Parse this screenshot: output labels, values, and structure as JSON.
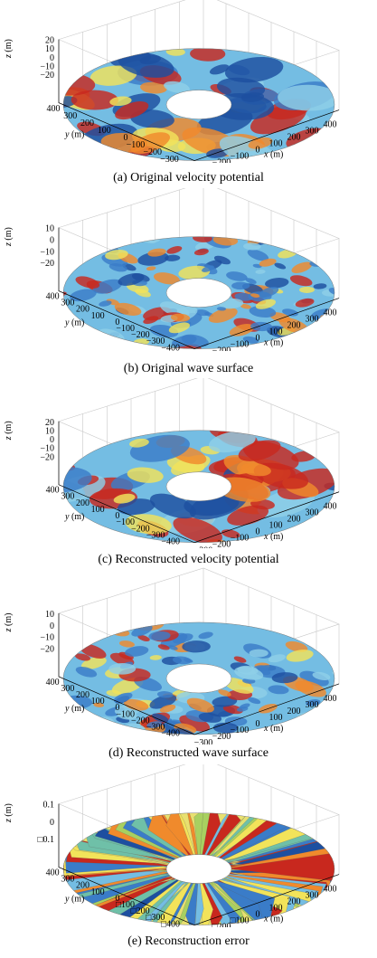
{
  "figure": {
    "panels": [
      {
        "id": "a",
        "caption": "(a) Original velocity potential",
        "surface": "velocity",
        "z_label": "z (m)",
        "z_ticks": [
          "20",
          "10",
          "0",
          "−10",
          "−20"
        ],
        "y_label": "y (m)",
        "y_ticks": [
          "400",
          "300",
          "200",
          "100",
          "0",
          "−100",
          "−200",
          "−300"
        ],
        "x_label": "x (m)",
        "x_ticks": [
          "−300",
          "−200",
          "−100",
          "0",
          "100",
          "200",
          "300",
          "400"
        ]
      },
      {
        "id": "b",
        "caption": "(b) Original wave surface",
        "surface": "wave",
        "z_label": "z (m)",
        "z_ticks": [
          "10",
          "0",
          "−10",
          "−20"
        ],
        "y_label": "y (m)",
        "y_ticks": [
          "400",
          "300",
          "200",
          "100",
          "0",
          "−100",
          "−200",
          "−300",
          "−400"
        ],
        "x_label": "x (m)",
        "x_ticks": [
          "−300",
          "−200",
          "−100",
          "0",
          "100",
          "200",
          "300",
          "400"
        ]
      },
      {
        "id": "c",
        "caption": "(c) Reconstructed velocity potential",
        "surface": "velocity",
        "z_label": "z (m)",
        "z_ticks": [
          "20",
          "10",
          "0",
          "−10",
          "−20"
        ],
        "y_label": "y (m)",
        "y_ticks": [
          "400",
          "300",
          "200",
          "100",
          "0",
          "−100",
          "−200",
          "−300",
          "−400"
        ],
        "x_label": "x (m)",
        "x_ticks": [
          "−300",
          "−200",
          "−100",
          "0",
          "100",
          "200",
          "300",
          "400"
        ]
      },
      {
        "id": "d",
        "caption": "(d) Reconstructed wave surface",
        "surface": "wave",
        "z_label": "z (m)",
        "z_ticks": [
          "10",
          "0",
          "−10",
          "−20"
        ],
        "y_label": "y (m)",
        "y_ticks": [
          "400",
          "300",
          "200",
          "100",
          "0",
          "−100",
          "−200",
          "−300",
          "−400"
        ],
        "x_label": "x (m)",
        "x_ticks": [
          "−300",
          "−200",
          "−100",
          "0",
          "100",
          "200",
          "300",
          "400"
        ]
      },
      {
        "id": "e",
        "caption": "(e) Reconstruction error",
        "surface": "error",
        "z_label": "z (m)",
        "z_ticks": [
          "0.1",
          "0",
          "□0.1"
        ],
        "y_label": "y (m)",
        "y_ticks": [
          "400",
          "300",
          "200",
          "100",
          "0",
          "□100",
          "□200",
          "□300",
          "□400"
        ],
        "x_label": "x (m)",
        "x_ticks": [
          "□300",
          "□200",
          "□100",
          "0",
          "100",
          "200",
          "300",
          "400"
        ]
      }
    ]
  },
  "colors": {
    "high": "#c8281e",
    "mid_high": "#f08a2c",
    "mid": "#f2e35a",
    "mid_low": "#8fd0e8",
    "low": "#3a7cc8",
    "deep": "#1d4fa0",
    "base": "#74bde3"
  }
}
